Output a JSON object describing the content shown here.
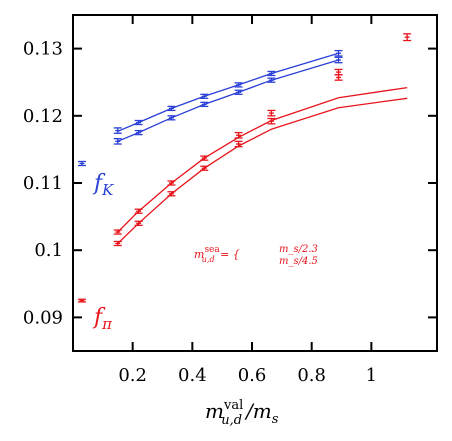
{
  "chart_data": {
    "type": "scatter",
    "title": "",
    "xlabel": "m_{u,d}^{val}/m_s",
    "ylabel": "",
    "xlim": [
      0,
      1.22
    ],
    "ylim": [
      0.085,
      0.135
    ],
    "grid": false,
    "x_ticks": [
      {
        "value": 0.2,
        "label": "0.2"
      },
      {
        "value": 0.4,
        "label": "0.4"
      },
      {
        "value": 0.6,
        "label": "0.6"
      },
      {
        "value": 0.8,
        "label": "0.8"
      },
      {
        "value": 1.0,
        "label": "1"
      }
    ],
    "y_ticks": [
      {
        "value": 0.09,
        "label": "0.09"
      },
      {
        "value": 0.1,
        "label": "0.1"
      },
      {
        "value": 0.11,
        "label": "0.11"
      },
      {
        "value": 0.12,
        "label": "0.12"
      },
      {
        "value": 0.13,
        "label": "0.13"
      }
    ],
    "series": [
      {
        "name": "f_K",
        "color": "#2a3fd6",
        "points": [
          {
            "x": 0.15,
            "y": 0.1162,
            "err": 0.0004
          },
          {
            "x": 0.22,
            "y": 0.1175,
            "err": 0.0003
          },
          {
            "x": 0.33,
            "y": 0.1197,
            "err": 0.0003
          },
          {
            "x": 0.44,
            "y": 0.1217,
            "err": 0.0003
          },
          {
            "x": 0.555,
            "y": 0.1235,
            "err": 0.0003
          },
          {
            "x": 0.665,
            "y": 0.1253,
            "err": 0.0003
          },
          {
            "x": 0.89,
            "y": 0.1283,
            "err": 0.0004
          },
          {
            "x": 0.15,
            "y": 0.1178,
            "err": 0.0004
          },
          {
            "x": 0.22,
            "y": 0.119,
            "err": 0.0003
          },
          {
            "x": 0.33,
            "y": 0.1211,
            "err": 0.0003
          },
          {
            "x": 0.44,
            "y": 0.1229,
            "err": 0.0003
          },
          {
            "x": 0.555,
            "y": 0.1246,
            "err": 0.0003
          },
          {
            "x": 0.665,
            "y": 0.1263,
            "err": 0.0003
          },
          {
            "x": 0.89,
            "y": 0.1293,
            "err": 0.0004
          }
        ],
        "fits": [
          {
            "x": [
              0.15,
              0.22,
              0.33,
              0.44,
              0.555,
              0.665,
              0.89
            ],
            "y": [
              0.1162,
              0.1175,
              0.1197,
              0.1217,
              0.1235,
              0.1253,
              0.1283
            ]
          },
          {
            "x": [
              0.15,
              0.22,
              0.33,
              0.44,
              0.555,
              0.665,
              0.89
            ],
            "y": [
              0.1177,
              0.119,
              0.1211,
              0.1229,
              0.1246,
              0.1263,
              0.1293
            ]
          }
        ],
        "physical_point": {
          "x": 0.03,
          "y": 0.1129,
          "err": 0.0003
        }
      },
      {
        "name": "f_π",
        "color": "#e8141c",
        "points": [
          {
            "x": 0.15,
            "y": 0.101,
            "err": 0.0003
          },
          {
            "x": 0.22,
            "y": 0.104,
            "err": 0.0003
          },
          {
            "x": 0.33,
            "y": 0.1084,
            "err": 0.0003
          },
          {
            "x": 0.44,
            "y": 0.1122,
            "err": 0.0003
          },
          {
            "x": 0.555,
            "y": 0.1158,
            "err": 0.0004
          },
          {
            "x": 0.665,
            "y": 0.1192,
            "err": 0.0004
          },
          {
            "x": 0.89,
            "y": 0.1257,
            "err": 0.0004
          },
          {
            "x": 0.15,
            "y": 0.1027,
            "err": 0.0003
          },
          {
            "x": 0.22,
            "y": 0.1058,
            "err": 0.0003
          },
          {
            "x": 0.33,
            "y": 0.11,
            "err": 0.0003
          },
          {
            "x": 0.44,
            "y": 0.1137,
            "err": 0.0003
          },
          {
            "x": 0.555,
            "y": 0.1171,
            "err": 0.0004
          },
          {
            "x": 0.665,
            "y": 0.1204,
            "err": 0.0004
          },
          {
            "x": 0.89,
            "y": 0.1265,
            "err": 0.0004
          },
          {
            "x": 1.12,
            "y": 0.1317,
            "err": 0.0005
          }
        ],
        "fits": [
          {
            "x": [
              0.15,
              0.22,
              0.33,
              0.44,
              0.555,
              0.665,
              0.89,
              1.12
            ],
            "y": [
              0.101,
              0.104,
              0.1084,
              0.1122,
              0.1155,
              0.118,
              0.1212,
              0.1226
            ]
          },
          {
            "x": [
              0.15,
              0.22,
              0.33,
              0.44,
              0.555,
              0.665,
              0.89,
              1.12
            ],
            "y": [
              0.1027,
              0.1058,
              0.11,
              0.1137,
              0.1168,
              0.1193,
              0.1227,
              0.1242
            ]
          }
        ],
        "physical_point": {
          "x": 0.03,
          "y": 0.0925,
          "err": 0.0002
        }
      }
    ]
  },
  "labels": {
    "x_axis_main": "m",
    "x_axis_sup": "val",
    "x_axis_sub": "u,d",
    "x_axis_rest": "/m",
    "x_axis_rest_sub": "s",
    "fK_main": "f",
    "fK_sub": "K",
    "fpi_main": "f",
    "fpi_sub": "π",
    "annot_m": "m",
    "annot_sup": "sea",
    "annot_sub": "u,d",
    "annot_eq": " = {",
    "annot_line1": "m_s/2.3",
    "annot_line2": "m_s/4.5"
  },
  "colors": {
    "blue": "#2a3fd6",
    "red": "#e8141c"
  }
}
